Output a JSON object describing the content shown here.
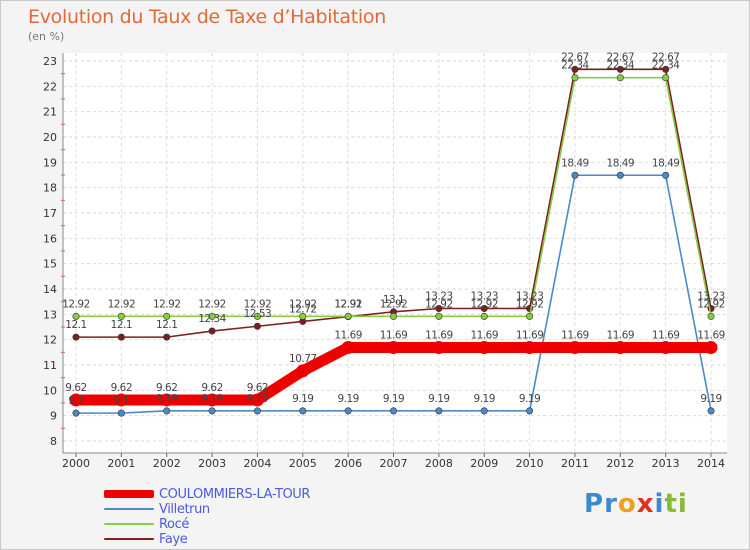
{
  "chart_data": {
    "type": "line",
    "title": "Evolution du Taux de Taxe d’Habitation",
    "ylabel": "(en %)",
    "xlabel": "",
    "ylim": [
      8,
      23
    ],
    "yticks": [
      8,
      9,
      10,
      11,
      12,
      13,
      14,
      15,
      16,
      17,
      18,
      19,
      20,
      21,
      22,
      23
    ],
    "x": [
      2000,
      2001,
      2002,
      2003,
      2004,
      2005,
      2006,
      2007,
      2008,
      2009,
      2010,
      2011,
      2012,
      2013,
      2014
    ],
    "grid": true,
    "series": [
      {
        "name": "COULOMMIERS-LA-TOUR",
        "color": "#ee0000",
        "values": [
          9.62,
          9.62,
          9.62,
          9.62,
          9.62,
          10.77,
          11.69,
          11.69,
          11.69,
          11.69,
          11.69,
          11.69,
          11.69,
          11.69,
          11.69
        ],
        "labels": [
          "9.62",
          "9.62",
          "9.62",
          "9.62",
          "9.62",
          "10.77",
          "11.69",
          "11.69",
          "11.69",
          "11.69",
          "11.69",
          "11.69",
          "11.69",
          "11.69",
          "11.69"
        ]
      },
      {
        "name": "Villetrun",
        "color": "#4a8ac8",
        "values": [
          9.1,
          9.1,
          9.19,
          9.19,
          9.19,
          9.19,
          9.19,
          9.19,
          9.19,
          9.19,
          9.19,
          18.49,
          18.49,
          18.49,
          9.19
        ],
        "labels": [
          "9.1",
          "9.1",
          "9.19",
          "9.19",
          "9.19",
          "9.19",
          "9.19",
          "9.19",
          "9.19",
          "9.19",
          "9.19",
          "18.49",
          "18.49",
          "18.49",
          "9.19"
        ]
      },
      {
        "name": "Rocé",
        "color": "#88cc44",
        "values": [
          12.92,
          12.92,
          12.92,
          12.92,
          12.92,
          12.92,
          12.92,
          12.92,
          12.92,
          12.92,
          12.92,
          22.34,
          22.34,
          22.34,
          12.92
        ],
        "labels": [
          "12.92",
          "12.92",
          "12.92",
          "12.92",
          "12.92",
          "12.92",
          "12.92",
          "12.92",
          "12.92",
          "12.92",
          "12.92",
          "22.34",
          "22.34",
          "22.34",
          "12.92"
        ]
      },
      {
        "name": "Faye",
        "color": "#7a2020",
        "values": [
          12.1,
          12.1,
          12.1,
          12.34,
          12.53,
          12.72,
          12.91,
          13.1,
          13.23,
          13.23,
          13.23,
          22.67,
          22.67,
          22.67,
          13.23
        ],
        "labels": [
          "12.1",
          "12.1",
          "12.1",
          "12.34",
          "12.53",
          "12.72",
          "12.91",
          "13.1",
          "13.23",
          "13.23",
          "13.23",
          "22.67",
          "22.67",
          "22.67",
          "13.23"
        ]
      }
    ]
  },
  "legend": {
    "items": [
      {
        "label": "COULOMMIERS-LA-TOUR",
        "color": "#ee0000"
      },
      {
        "label": "Villetrun",
        "color": "#4a8ac8"
      },
      {
        "label": "Rocé",
        "color": "#88cc44"
      },
      {
        "label": "Faye",
        "color": "#7a2020"
      }
    ]
  },
  "logo": {
    "letters": [
      "P",
      "r",
      "o",
      "x",
      "i",
      "t",
      "i"
    ],
    "colors": [
      "#3a8ad0",
      "#3a8ad0",
      "#f0a020",
      "#e03020",
      "#3a8ad0",
      "#88bb33",
      "#88bb33"
    ]
  }
}
